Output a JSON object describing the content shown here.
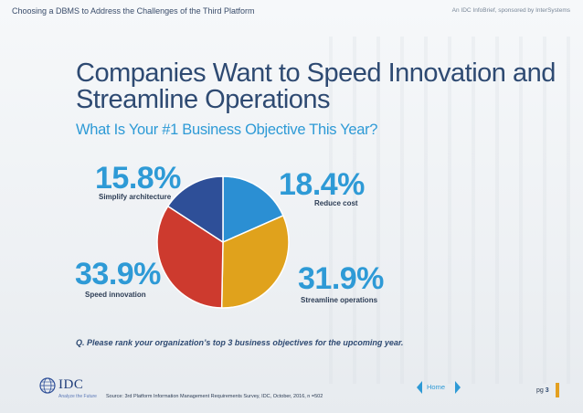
{
  "header": {
    "left_text": "Choosing a DBMS to Address the Challenges of the Third Platform",
    "right_text": "An IDC InfoBrief, sponsored by InterSystems"
  },
  "title": "Companies Want to Speed Innovation and Streamline Operations",
  "subtitle": "What Is Your #1 Business  Objective This Year?",
  "question": "Q. Please rank your organization’s top 3 business objectives for the upcoming year.",
  "chart_data": {
    "type": "pie",
    "slices": [
      {
        "label": "Reduce cost",
        "value": 18.4,
        "display": "18.4%",
        "color": "#2b8fd3"
      },
      {
        "label": "Streamline operations",
        "value": 31.9,
        "display": "31.9%",
        "color": "#e0a21c"
      },
      {
        "label": "Speed innovation",
        "value": 33.9,
        "display": "33.9%",
        "color": "#cd3a2e"
      },
      {
        "label": "Simplify architecture",
        "value": 15.8,
        "display": "15.8%",
        "color": "#2e4f98"
      }
    ]
  },
  "footer": {
    "logo_text": "IDC",
    "tagline": "Analyze the Future",
    "source": "Source: 3rd Platform Information Management Requirements Survey, IDC, October, 2016, n =502",
    "home_label": "Home",
    "page_prefix": "pg",
    "page_number": "3"
  }
}
